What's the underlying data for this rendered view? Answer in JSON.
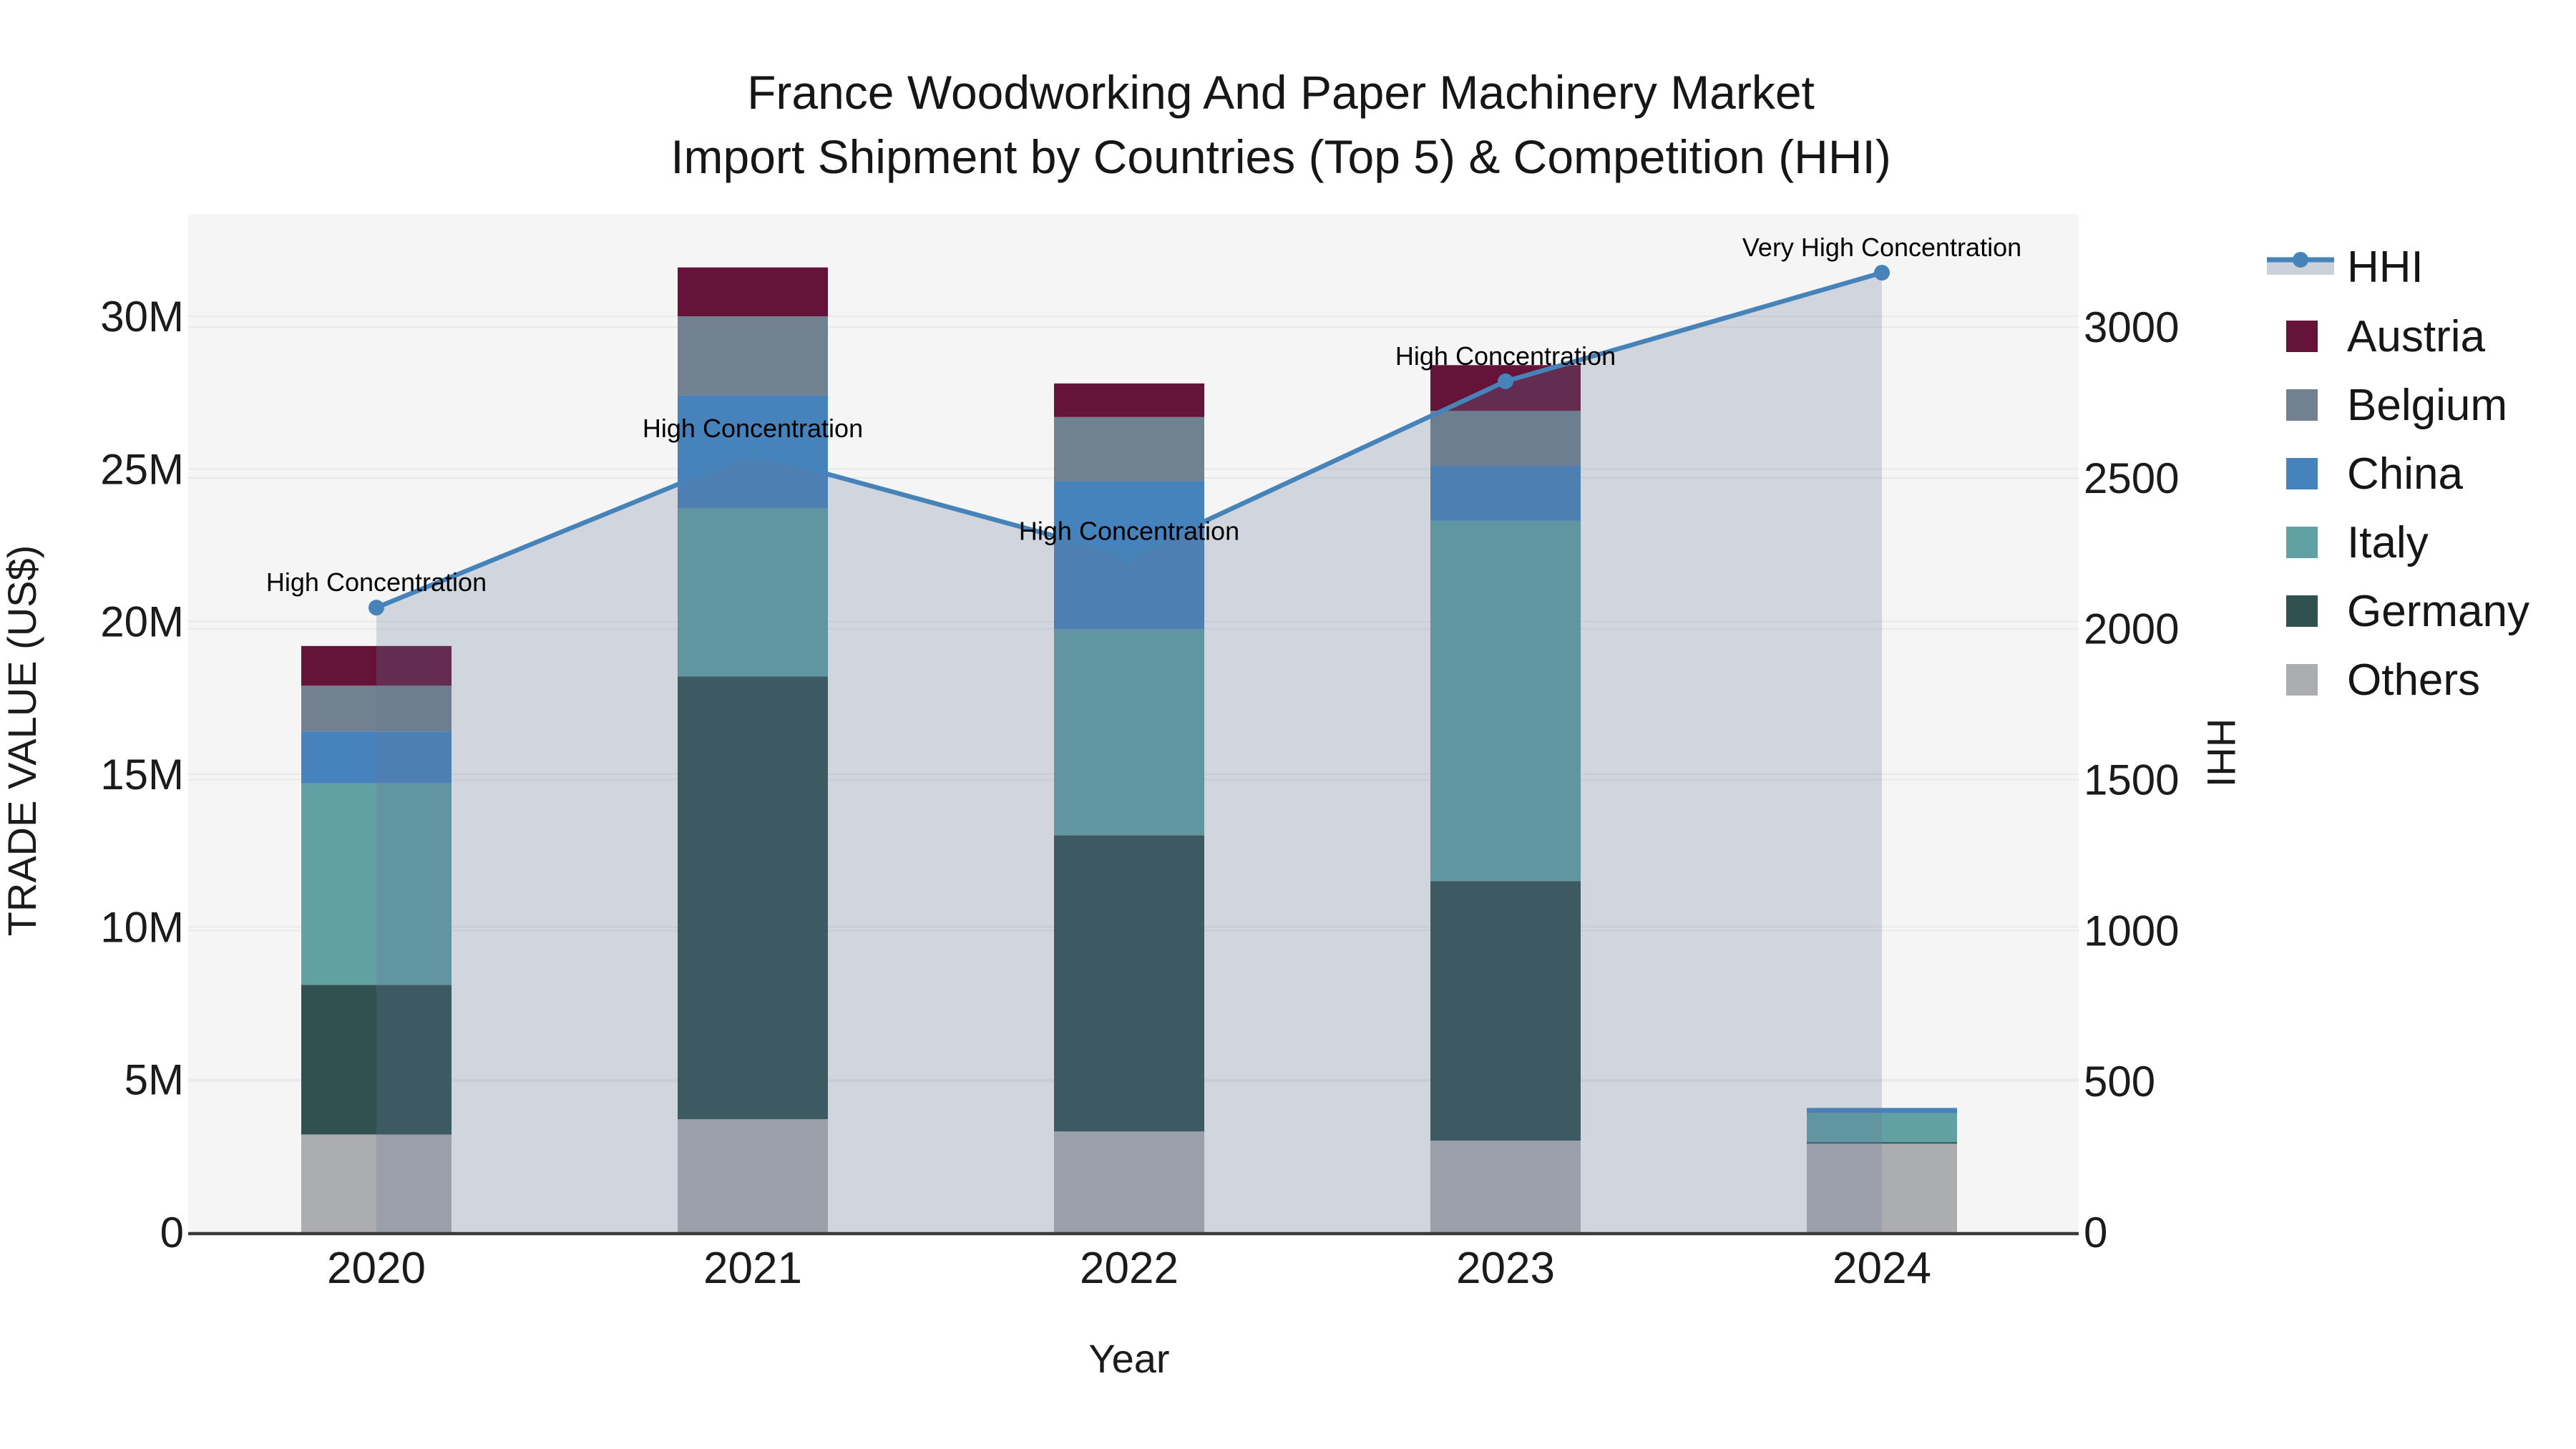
{
  "title": {
    "line1": "France Woodworking And Paper Machinery Market",
    "line2": "Import Shipment by Countries (Top 5) & Competition (HHI)"
  },
  "axes": {
    "x": {
      "title": "Year",
      "ticks": [
        "2020",
        "2021",
        "2022",
        "2023",
        "2024"
      ]
    },
    "y_left": {
      "title": "TRADE VALUE (US$)",
      "tick_labels": [
        "0",
        "5M",
        "10M",
        "15M",
        "20M",
        "25M",
        "30M"
      ],
      "tick_values": [
        0,
        5,
        10,
        15,
        20,
        25,
        30
      ]
    },
    "y_right": {
      "title": "HHI",
      "tick_labels": [
        "0",
        "500",
        "1000",
        "1500",
        "2000",
        "2500",
        "3000"
      ],
      "tick_values": [
        0,
        500,
        1000,
        1500,
        2000,
        2500,
        3000
      ]
    }
  },
  "chart_data": {
    "type": "bar",
    "stacked": true,
    "unit": "million US$",
    "title": "France Woodworking And Paper Machinery Market Import Shipment by Countries (Top 5) & Competition (HHI)",
    "categories": [
      "2020",
      "2021",
      "2022",
      "2023",
      "2024"
    ],
    "stack_order_bottom_to_top": [
      "Others",
      "Germany",
      "Italy",
      "China",
      "Belgium",
      "Austria"
    ],
    "series": [
      {
        "name": "Others",
        "color": "#ACADAF",
        "values": [
          3.2,
          3.7,
          3.3,
          3.0,
          2.9
        ]
      },
      {
        "name": "Germany",
        "color": "#315050",
        "values": [
          4.9,
          14.5,
          9.7,
          8.5,
          0.05
        ]
      },
      {
        "name": "Italy",
        "color": "#61A1A3",
        "values": [
          6.6,
          5.5,
          6.75,
          11.8,
          0.95
        ]
      },
      {
        "name": "China",
        "color": "#4682BB",
        "values": [
          1.7,
          3.7,
          4.85,
          1.8,
          0.17
        ]
      },
      {
        "name": "Belgium",
        "color": "#72818F",
        "values": [
          1.5,
          2.6,
          2.1,
          1.8,
          0.0
        ]
      },
      {
        "name": "Austria",
        "color": "#651339",
        "values": [
          1.3,
          1.6,
          1.1,
          1.5,
          0.0
        ]
      }
    ],
    "bar_totals": [
      19.2,
      31.6,
      27.8,
      28.4,
      4.07
    ],
    "line_series": {
      "name": "HHI",
      "color": "#4683B8",
      "area_fill": "rgba(100,120,150,0.25)",
      "values": [
        2070,
        2580,
        2240,
        2820,
        3180
      ]
    },
    "annotations": [
      {
        "year": "2020",
        "text": "High Concentration"
      },
      {
        "year": "2021",
        "text": "High Concentration"
      },
      {
        "year": "2022",
        "text": "High Concentration"
      },
      {
        "year": "2023",
        "text": "High Concentration"
      },
      {
        "year": "2024",
        "text": "Very High Concentration"
      }
    ],
    "xlabel": "Year",
    "ylabel_left": "TRADE VALUE (US$)",
    "ylabel_right": "HHI",
    "y_left_range": [
      0,
      33.3
    ],
    "y_right_range": [
      0,
      3375
    ],
    "grid": true,
    "legend_position": "right"
  },
  "legend": {
    "order": [
      "HHI",
      "Austria",
      "Belgium",
      "China",
      "Italy",
      "Germany",
      "Others"
    ]
  },
  "colors": {
    "plot_background": "#F5F5F6",
    "grid_line": "#E8E9EB",
    "axis_line": "#3A3A3A",
    "hhi_line": "#4683B8",
    "hhi_area": "rgba(100,120,150,0.25)",
    "legend_band": "#CBD1DB"
  }
}
